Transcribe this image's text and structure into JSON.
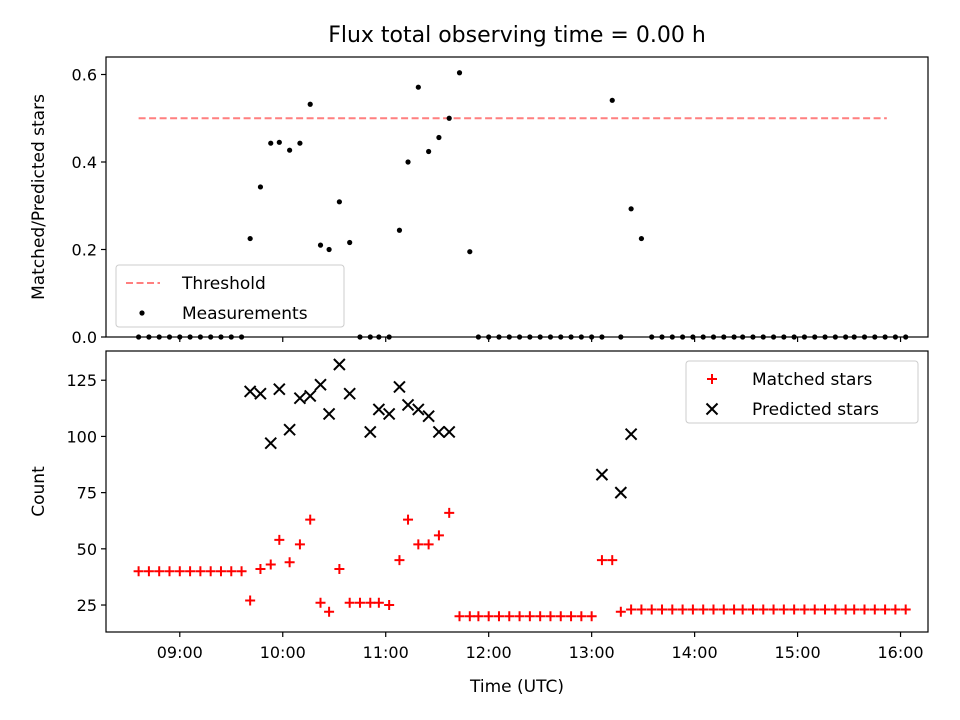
{
  "title": "Flux total observing time = 0.00 h",
  "chart_data": [
    {
      "type": "scatter",
      "ylabel": "Matched/Predicted stars",
      "xlim": [
        "08:17",
        "16:16"
      ],
      "ylim": [
        0,
        0.64
      ],
      "yticks": [
        0.0,
        0.2,
        0.4,
        0.6
      ],
      "ytick_labels": [
        "0.0",
        "0.2",
        "0.4",
        "0.6"
      ],
      "legend_position": "lower-left",
      "series": [
        {
          "name": "Threshold",
          "kind": "dashed-line",
          "color": "#ff7f7f",
          "x": [
            "08:36",
            "15:52"
          ],
          "y": [
            0.5,
            0.5
          ]
        },
        {
          "name": "Measurements",
          "kind": "dot",
          "color": "#000000",
          "x": [
            "08:36",
            "08:42",
            "08:48",
            "08:54",
            "09:00",
            "09:06",
            "09:12",
            "09:18",
            "09:24",
            "09:30",
            "09:36",
            "09:41",
            "09:47",
            "09:53",
            "09:58",
            "10:04",
            "10:10",
            "10:16",
            "10:22",
            "10:27",
            "10:33",
            "10:39",
            "10:45",
            "10:51",
            "10:56",
            "11:02",
            "11:08",
            "11:13",
            "11:19",
            "11:25",
            "11:31",
            "11:37",
            "11:43",
            "11:49",
            "11:54",
            "12:00",
            "12:06",
            "12:12",
            "12:18",
            "12:24",
            "12:30",
            "12:36",
            "12:42",
            "12:48",
            "12:54",
            "13:00",
            "13:06",
            "13:12",
            "13:17",
            "13:23",
            "13:29",
            "13:35",
            "13:41",
            "13:47",
            "13:53",
            "13:59",
            "14:05",
            "14:11",
            "14:17",
            "14:23",
            "14:28",
            "14:34",
            "14:40",
            "14:46",
            "14:52",
            "14:58",
            "15:04",
            "15:10",
            "15:16",
            "15:22",
            "15:28",
            "15:33",
            "15:39",
            "15:45",
            "15:51",
            "15:57",
            "16:03"
          ],
          "y": [
            0,
            0,
            0,
            0,
            0,
            0,
            0,
            0,
            0,
            0,
            0,
            0.225,
            0.343,
            0.443,
            0.445,
            0.427,
            0.443,
            0.532,
            0.21,
            0.2,
            0.309,
            0.216,
            0,
            0,
            0,
            0,
            0.244,
            0.4,
            0.571,
            0.424,
            0.456,
            0.5,
            0.604,
            0.195,
            0,
            0,
            0,
            0,
            0,
            0,
            0,
            0,
            0,
            0,
            0,
            0,
            0,
            0.541,
            0,
            0.293,
            0.225,
            0,
            0,
            0,
            0,
            0,
            0,
            0,
            0,
            0,
            0,
            0,
            0,
            0,
            0,
            0,
            0,
            0,
            0,
            0,
            0,
            0,
            0,
            0,
            0,
            0,
            0
          ]
        }
      ]
    },
    {
      "type": "scatter",
      "xlabel": "Time (UTC)",
      "ylabel": "Count",
      "xlim": [
        "08:17",
        "16:16"
      ],
      "ylim": [
        13,
        138
      ],
      "xticks": [
        "09:00",
        "10:00",
        "11:00",
        "12:00",
        "13:00",
        "14:00",
        "15:00",
        "16:00"
      ],
      "yticks": [
        25,
        50,
        75,
        100,
        125
      ],
      "ytick_labels": [
        "25",
        "50",
        "75",
        "100",
        "125"
      ],
      "legend_position": "upper-right",
      "series": [
        {
          "name": "Matched stars",
          "kind": "plus",
          "color": "#ff0000",
          "x": [
            "08:36",
            "08:42",
            "08:48",
            "08:54",
            "09:00",
            "09:06",
            "09:12",
            "09:18",
            "09:24",
            "09:30",
            "09:36",
            "09:41",
            "09:47",
            "09:53",
            "09:58",
            "10:04",
            "10:10",
            "10:16",
            "10:22",
            "10:27",
            "10:33",
            "10:39",
            "10:45",
            "10:51",
            "10:56",
            "11:02",
            "11:08",
            "11:13",
            "11:19",
            "11:25",
            "11:31",
            "11:37",
            "11:43",
            "11:49",
            "11:54",
            "12:00",
            "12:06",
            "12:12",
            "12:18",
            "12:24",
            "12:30",
            "12:36",
            "12:42",
            "12:48",
            "12:54",
            "13:00",
            "13:06",
            "13:12",
            "13:17",
            "13:23",
            "13:29",
            "13:35",
            "13:41",
            "13:47",
            "13:53",
            "13:59",
            "14:05",
            "14:11",
            "14:17",
            "14:23",
            "14:28",
            "14:34",
            "14:40",
            "14:46",
            "14:52",
            "14:58",
            "15:04",
            "15:10",
            "15:16",
            "15:22",
            "15:28",
            "15:33",
            "15:39",
            "15:45",
            "15:51",
            "15:57",
            "16:03"
          ],
          "y": [
            40,
            40,
            40,
            40,
            40,
            40,
            40,
            40,
            40,
            40,
            40,
            27,
            41,
            43,
            54,
            44,
            52,
            63,
            26,
            22,
            41,
            26,
            26,
            26,
            26,
            25,
            45,
            63,
            52,
            52,
            56,
            66,
            20,
            20,
            20,
            20,
            20,
            20,
            20,
            20,
            20,
            20,
            20,
            20,
            20,
            20,
            45,
            45,
            22,
            23,
            23,
            23,
            23,
            23,
            23,
            23,
            23,
            23,
            23,
            23,
            23,
            23,
            23,
            23,
            23,
            23,
            23,
            23,
            23,
            23,
            23,
            23,
            23,
            23,
            23,
            23,
            23
          ]
        },
        {
          "name": "Predicted stars",
          "kind": "x",
          "color": "#000000",
          "x": [
            "09:41",
            "09:47",
            "09:53",
            "09:58",
            "10:04",
            "10:10",
            "10:16",
            "10:22",
            "10:27",
            "10:33",
            "10:39",
            "10:51",
            "10:56",
            "11:02",
            "11:08",
            "11:13",
            "11:19",
            "11:25",
            "11:31",
            "11:37",
            "13:06",
            "13:17",
            "13:23"
          ],
          "y": [
            120,
            119,
            97,
            121,
            103,
            117,
            118,
            123,
            110,
            132,
            119,
            102,
            112,
            110,
            122,
            114,
            112,
            109,
            102,
            102,
            83,
            75,
            101
          ]
        }
      ]
    }
  ]
}
